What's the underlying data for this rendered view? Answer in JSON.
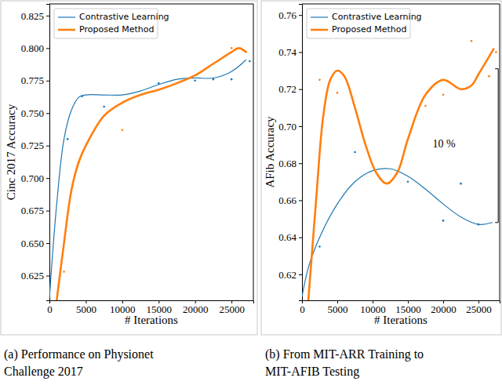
{
  "chart_data": [
    {
      "type": "line",
      "caption": [
        "(a) Performance on Physionet",
        "Challenge 2017"
      ],
      "x_label": "# Iterations",
      "y_label": "Cinc 2017 Accuracy",
      "xlim": [
        0,
        28000
      ],
      "ylim": [
        0.606,
        0.834
      ],
      "xticks": [
        0,
        5000,
        10000,
        15000,
        20000,
        25000
      ],
      "yticks": [
        0.625,
        {
          "value": 0.65,
          "label": "0.650"
        },
        0.675,
        {
          "value": 0.7,
          "label": "0.700"
        },
        0.725,
        {
          "value": 0.75,
          "label": "0.750"
        },
        0.775,
        {
          "value": 0.8,
          "label": "0.800"
        },
        0.825
      ],
      "legend": "upper left",
      "grid": false,
      "series": [
        {
          "name": "Contrastive Learning",
          "color": "#1f77b4",
          "line_style": "solid",
          "x": [
            0,
            1000,
            2000,
            3000,
            4000,
            5000,
            7500,
            10000,
            12500,
            15000,
            17500,
            20000,
            22500,
            25000,
            27000
          ],
          "values": [
            0.608,
            0.68,
            0.73,
            0.752,
            0.762,
            0.764,
            0.764,
            0.764,
            0.767,
            0.772,
            0.776,
            0.777,
            0.777,
            0.782,
            0.791
          ],
          "points": {
            "x": [
              2500,
              4500,
              7500,
              15000,
              20000,
              22500,
              25000,
              27500
            ],
            "values": [
              0.73,
              0.763,
              0.755,
              0.773,
              0.775,
              0.776,
              0.776,
              0.79
            ]
          }
        },
        {
          "name": "Proposed Method",
          "color": "#ff7f0e",
          "line_style": "solid",
          "x": [
            1000,
            2000,
            3000,
            4000,
            5000,
            7500,
            10000,
            12500,
            15000,
            17500,
            20000,
            22500,
            25000,
            26000,
            27000
          ],
          "values": [
            0.606,
            0.65,
            0.69,
            0.712,
            0.725,
            0.748,
            0.758,
            0.764,
            0.768,
            0.773,
            0.779,
            0.788,
            0.797,
            0.8,
            0.797
          ],
          "points": {
            "x": [
              2000,
              4000,
              10000,
              25000,
              27000
            ],
            "values": [
              0.628,
              0.712,
              0.737,
              0.8,
              0.797
            ]
          }
        }
      ]
    },
    {
      "type": "line",
      "caption": [
        "(b) From MIT-ARR Training to",
        "MIT-AFIB Testing"
      ],
      "x_label": "# Iterations",
      "y_label": "AFib Accuracy",
      "xlim": [
        0,
        28000
      ],
      "ylim": [
        0.606,
        0.766
      ],
      "xticks": [
        0,
        5000,
        10000,
        15000,
        20000,
        25000
      ],
      "yticks": [
        0.62,
        0.64,
        0.66,
        0.68,
        {
          "value": 0.7,
          "label": "0.70"
        },
        0.72,
        0.74,
        0.76
      ],
      "legend": "upper left",
      "grid": false,
      "series": [
        {
          "name": "Contrastive Learning",
          "color": "#1f77b4",
          "line_style": "solid",
          "x": [
            0,
            1000,
            2500,
            5000,
            7500,
            10000,
            12500,
            15000,
            17500,
            20000,
            22500,
            25000,
            27000
          ],
          "values": [
            0.608,
            0.625,
            0.64,
            0.658,
            0.67,
            0.676,
            0.677,
            0.673,
            0.666,
            0.658,
            0.651,
            0.647,
            0.648
          ],
          "points": {
            "x": [
              2500,
              7500,
              15000,
              20000,
              22500,
              25000
            ],
            "values": [
              0.635,
              0.686,
              0.67,
              0.649,
              0.669,
              0.647
            ]
          }
        },
        {
          "name": "Proposed Method",
          "color": "#ff7f0e",
          "line_style": "solid",
          "x": [
            900,
            2000,
            3000,
            4000,
            5000,
            6000,
            7500,
            9000,
            10500,
            12000,
            13500,
            15000,
            17500,
            20000,
            22500,
            24000,
            25000,
            27200
          ],
          "values": [
            0.606,
            0.66,
            0.705,
            0.725,
            0.73,
            0.727,
            0.71,
            0.69,
            0.675,
            0.669,
            0.675,
            0.693,
            0.717,
            0.725,
            0.72,
            0.722,
            0.728,
            0.742
          ],
          "points": {
            "x": [
              2500,
              5000,
              17500,
              20000,
              24000,
              26500,
              27500
            ],
            "values": [
              0.725,
              0.718,
              0.711,
              0.717,
              0.746,
              0.727,
              0.74
            ]
          }
        }
      ],
      "annotations": [
        {
          "text": "10 %",
          "x": 18500,
          "y": 0.69,
          "bracket": {
            "x": 27800,
            "y": [
              0.731,
              0.648
            ]
          }
        }
      ]
    }
  ]
}
